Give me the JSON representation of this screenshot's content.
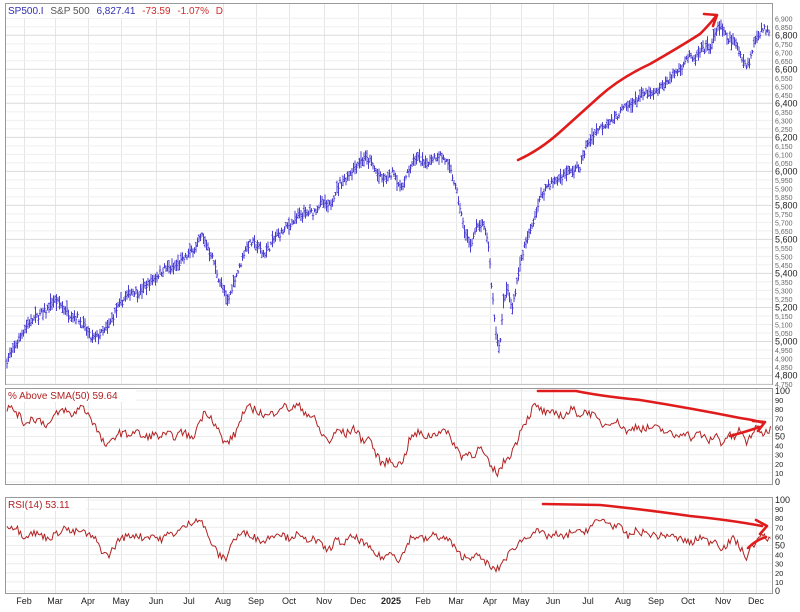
{
  "header": {
    "symbol": "SP500.I",
    "name": "S&P 500",
    "last": "6,827.41",
    "change": "-73.59",
    "pct": "-1.07%",
    "period": "D"
  },
  "panels": {
    "breadth_label": "% Above SMA(50) 59.64",
    "rsi_label": "RSI(14) 53.11"
  },
  "colors": {
    "price": "#4b3fd1",
    "indicator": "#b22222",
    "annotation": "#e01b1b",
    "grid": "#e6e6e6",
    "header_blue": "#2f2fb0",
    "header_red": "#d12b2b"
  },
  "chart_data": [
    {
      "type": "ohlc",
      "series": [
        {
          "name": "SP500.I"
        }
      ],
      "ylim": [
        4750,
        6925
      ],
      "y_ticks": [
        "6,900",
        "6,850",
        "6,800",
        "6,750",
        "6,700",
        "6,650",
        "6,600",
        "6,550",
        "6,500",
        "6,450",
        "6,400",
        "6,350",
        "6,300",
        "6,250",
        "6,200",
        "6,150",
        "6,100",
        "6,050",
        "6,000",
        "5,950",
        "5,900",
        "5,850",
        "5,800",
        "5,750",
        "5,700",
        "5,650",
        "5,600",
        "5,550",
        "5,500",
        "5,450",
        "5,400",
        "5,350",
        "5,300",
        "5,250",
        "5,200",
        "5,150",
        "5,100",
        "5,050",
        "5,000",
        "4,950",
        "4,900",
        "4,850",
        "4,800",
        "4,750"
      ],
      "x_ticks": [
        "Feb",
        "Mar",
        "Apr",
        "May",
        "Jun",
        "Jul",
        "Aug",
        "Sep",
        "Oct",
        "Nov",
        "Dec",
        "2025",
        "Feb",
        "Mar",
        "Apr",
        "May",
        "Jun",
        "Jul",
        "Aug",
        "Sep",
        "Oct",
        "Nov",
        "Dec"
      ],
      "anchors": [
        [
          0,
          4780
        ],
        [
          6,
          4880
        ],
        [
          14,
          4960
        ],
        [
          22,
          5050
        ],
        [
          30,
          5120
        ],
        [
          38,
          5150
        ],
        [
          46,
          5180
        ],
        [
          54,
          5240
        ],
        [
          62,
          5210
        ],
        [
          70,
          5160
        ],
        [
          78,
          5140
        ],
        [
          86,
          5070
        ],
        [
          92,
          5010
        ],
        [
          100,
          5040
        ],
        [
          108,
          5080
        ],
        [
          116,
          5180
        ],
        [
          124,
          5250
        ],
        [
          132,
          5300
        ],
        [
          140,
          5290
        ],
        [
          148,
          5340
        ],
        [
          156,
          5380
        ],
        [
          164,
          5430
        ],
        [
          172,
          5430
        ],
        [
          180,
          5460
        ],
        [
          188,
          5510
        ],
        [
          196,
          5560
        ],
        [
          202,
          5620
        ],
        [
          206,
          5580
        ],
        [
          212,
          5500
        ],
        [
          218,
          5380
        ],
        [
          224,
          5290
        ],
        [
          228,
          5230
        ],
        [
          234,
          5360
        ],
        [
          240,
          5440
        ],
        [
          246,
          5560
        ],
        [
          252,
          5580
        ],
        [
          258,
          5560
        ],
        [
          264,
          5510
        ],
        [
          270,
          5560
        ],
        [
          276,
          5620
        ],
        [
          282,
          5640
        ],
        [
          290,
          5690
        ],
        [
          298,
          5730
        ],
        [
          306,
          5750
        ],
        [
          314,
          5760
        ],
        [
          322,
          5820
        ],
        [
          328,
          5780
        ],
        [
          334,
          5860
        ],
        [
          340,
          5930
        ],
        [
          346,
          5960
        ],
        [
          352,
          6010
        ],
        [
          358,
          6050
        ],
        [
          364,
          6080
        ],
        [
          370,
          6060
        ],
        [
          376,
          6000
        ],
        [
          382,
          5950
        ],
        [
          388,
          5960
        ],
        [
          394,
          6000
        ],
        [
          400,
          5900
        ],
        [
          406,
          5960
        ],
        [
          412,
          6050
        ],
        [
          418,
          6080
        ],
        [
          424,
          6040
        ],
        [
          432,
          6080
        ],
        [
          440,
          6100
        ],
        [
          446,
          6060
        ],
        [
          452,
          5980
        ],
        [
          458,
          5850
        ],
        [
          464,
          5660
        ],
        [
          470,
          5560
        ],
        [
          476,
          5660
        ],
        [
          482,
          5690
        ],
        [
          488,
          5600
        ],
        [
          492,
          5300
        ],
        [
          496,
          5050
        ],
        [
          500,
          4970
        ],
        [
          504,
          5260
        ],
        [
          508,
          5300
        ],
        [
          512,
          5180
        ],
        [
          518,
          5390
        ],
        [
          524,
          5550
        ],
        [
          530,
          5640
        ],
        [
          536,
          5760
        ],
        [
          542,
          5870
        ],
        [
          548,
          5920
        ],
        [
          554,
          5940
        ],
        [
          560,
          5960
        ],
        [
          566,
          5990
        ],
        [
          572,
          6000
        ],
        [
          580,
          6030
        ],
        [
          586,
          6140
        ],
        [
          592,
          6210
        ],
        [
          598,
          6250
        ],
        [
          606,
          6280
        ],
        [
          614,
          6310
        ],
        [
          622,
          6360
        ],
        [
          630,
          6390
        ],
        [
          638,
          6430
        ],
        [
          646,
          6460
        ],
        [
          654,
          6450
        ],
        [
          662,
          6500
        ],
        [
          670,
          6550
        ],
        [
          676,
          6580
        ],
        [
          682,
          6620
        ],
        [
          688,
          6680
        ],
        [
          694,
          6650
        ],
        [
          700,
          6700
        ],
        [
          706,
          6720
        ],
        [
          712,
          6750
        ],
        [
          718,
          6860
        ],
        [
          722,
          6830
        ],
        [
          728,
          6770
        ],
        [
          734,
          6770
        ],
        [
          740,
          6700
        ],
        [
          746,
          6620
        ],
        [
          750,
          6650
        ],
        [
          756,
          6790
        ],
        [
          762,
          6830
        ],
        [
          768,
          6840
        ],
        [
          771,
          6825
        ]
      ],
      "annotation": "rising trend arrow from Apr 2025 low region to late Oct 2025 high"
    },
    {
      "type": "line",
      "series": [
        {
          "name": "% Above SMA(50)"
        }
      ],
      "ylim": [
        0,
        100
      ],
      "y_ticks": [
        "100",
        "90",
        "80",
        "70",
        "60",
        "50",
        "40",
        "30",
        "20",
        "10",
        "0"
      ],
      "anchors": [
        [
          0,
          78
        ],
        [
          8,
          82
        ],
        [
          16,
          78
        ],
        [
          24,
          64
        ],
        [
          32,
          70
        ],
        [
          40,
          68
        ],
        [
          48,
          62
        ],
        [
          56,
          74
        ],
        [
          64,
          80
        ],
        [
          72,
          72
        ],
        [
          80,
          84
        ],
        [
          88,
          76
        ],
        [
          96,
          60
        ],
        [
          102,
          45
        ],
        [
          108,
          38
        ],
        [
          114,
          50
        ],
        [
          120,
          54
        ],
        [
          128,
          52
        ],
        [
          136,
          56
        ],
        [
          144,
          48
        ],
        [
          152,
          52
        ],
        [
          160,
          50
        ],
        [
          168,
          52
        ],
        [
          176,
          50
        ],
        [
          184,
          56
        ],
        [
          192,
          46
        ],
        [
          200,
          68
        ],
        [
          206,
          78
        ],
        [
          212,
          70
        ],
        [
          218,
          58
        ],
        [
          224,
          42
        ],
        [
          230,
          46
        ],
        [
          236,
          54
        ],
        [
          242,
          74
        ],
        [
          250,
          82
        ],
        [
          258,
          78
        ],
        [
          266,
          72
        ],
        [
          274,
          76
        ],
        [
          282,
          84
        ],
        [
          290,
          80
        ],
        [
          298,
          84
        ],
        [
          306,
          76
        ],
        [
          314,
          70
        ],
        [
          322,
          52
        ],
        [
          330,
          44
        ],
        [
          338,
          58
        ],
        [
          346,
          52
        ],
        [
          354,
          60
        ],
        [
          362,
          46
        ],
        [
          370,
          48
        ],
        [
          376,
          30
        ],
        [
          382,
          20
        ],
        [
          390,
          24
        ],
        [
          398,
          18
        ],
        [
          404,
          26
        ],
        [
          410,
          48
        ],
        [
          418,
          54
        ],
        [
          426,
          50
        ],
        [
          434,
          52
        ],
        [
          442,
          58
        ],
        [
          450,
          50
        ],
        [
          456,
          38
        ],
        [
          462,
          28
        ],
        [
          468,
          32
        ],
        [
          474,
          30
        ],
        [
          480,
          38
        ],
        [
          486,
          26
        ],
        [
          492,
          14
        ],
        [
          498,
          10
        ],
        [
          504,
          22
        ],
        [
          510,
          30
        ],
        [
          516,
          42
        ],
        [
          522,
          62
        ],
        [
          528,
          70
        ],
        [
          534,
          84
        ],
        [
          540,
          80
        ],
        [
          548,
          74
        ],
        [
          556,
          76
        ],
        [
          564,
          72
        ],
        [
          572,
          80
        ],
        [
          580,
          74
        ],
        [
          588,
          78
        ],
        [
          596,
          70
        ],
        [
          604,
          62
        ],
        [
          612,
          68
        ],
        [
          620,
          64
        ],
        [
          628,
          54
        ],
        [
          636,
          62
        ],
        [
          644,
          58
        ],
        [
          652,
          60
        ],
        [
          660,
          58
        ],
        [
          668,
          54
        ],
        [
          676,
          50
        ],
        [
          684,
          56
        ],
        [
          692,
          48
        ],
        [
          700,
          54
        ],
        [
          708,
          44
        ],
        [
          716,
          52
        ],
        [
          722,
          42
        ],
        [
          728,
          52
        ],
        [
          734,
          48
        ],
        [
          740,
          58
        ],
        [
          746,
          42
        ],
        [
          752,
          54
        ],
        [
          758,
          60
        ],
        [
          764,
          52
        ],
        [
          771,
          60
        ]
      ],
      "annotation": "declining trend arrow from May 2025 to late Nov 2025"
    },
    {
      "type": "line",
      "series": [
        {
          "name": "RSI(14)"
        }
      ],
      "ylim": [
        0,
        100
      ],
      "y_ticks": [
        "100",
        "90",
        "80",
        "70",
        "60",
        "50",
        "40",
        "30",
        "20",
        "10",
        "0"
      ],
      "anchors": [
        [
          0,
          66
        ],
        [
          8,
          72
        ],
        [
          16,
          70
        ],
        [
          24,
          60
        ],
        [
          32,
          64
        ],
        [
          40,
          62
        ],
        [
          48,
          58
        ],
        [
          56,
          62
        ],
        [
          64,
          70
        ],
        [
          72,
          64
        ],
        [
          80,
          66
        ],
        [
          88,
          62
        ],
        [
          96,
          56
        ],
        [
          102,
          44
        ],
        [
          108,
          38
        ],
        [
          114,
          48
        ],
        [
          120,
          58
        ],
        [
          128,
          60
        ],
        [
          136,
          62
        ],
        [
          144,
          58
        ],
        [
          152,
          62
        ],
        [
          160,
          56
        ],
        [
          168,
          62
        ],
        [
          176,
          64
        ],
        [
          184,
          70
        ],
        [
          192,
          76
        ],
        [
          198,
          80
        ],
        [
          202,
          76
        ],
        [
          208,
          60
        ],
        [
          214,
          48
        ],
        [
          220,
          38
        ],
        [
          226,
          36
        ],
        [
          232,
          54
        ],
        [
          240,
          62
        ],
        [
          248,
          64
        ],
        [
          256,
          58
        ],
        [
          264,
          54
        ],
        [
          272,
          62
        ],
        [
          280,
          64
        ],
        [
          288,
          58
        ],
        [
          296,
          62
        ],
        [
          304,
          56
        ],
        [
          312,
          58
        ],
        [
          320,
          52
        ],
        [
          328,
          44
        ],
        [
          336,
          56
        ],
        [
          344,
          52
        ],
        [
          352,
          60
        ],
        [
          360,
          56
        ],
        [
          368,
          48
        ],
        [
          376,
          40
        ],
        [
          384,
          36
        ],
        [
          392,
          44
        ],
        [
          398,
          34
        ],
        [
          404,
          42
        ],
        [
          410,
          58
        ],
        [
          418,
          60
        ],
        [
          426,
          56
        ],
        [
          434,
          62
        ],
        [
          442,
          58
        ],
        [
          450,
          56
        ],
        [
          456,
          44
        ],
        [
          462,
          38
        ],
        [
          468,
          36
        ],
        [
          474,
          40
        ],
        [
          480,
          36
        ],
        [
          486,
          32
        ],
        [
          492,
          24
        ],
        [
          498,
          24
        ],
        [
          504,
          34
        ],
        [
          510,
          42
        ],
        [
          516,
          50
        ],
        [
          522,
          56
        ],
        [
          528,
          60
        ],
        [
          534,
          66
        ],
        [
          540,
          64
        ],
        [
          548,
          60
        ],
        [
          556,
          62
        ],
        [
          564,
          58
        ],
        [
          572,
          66
        ],
        [
          580,
          64
        ],
        [
          588,
          68
        ],
        [
          596,
          76
        ],
        [
          604,
          78
        ],
        [
          612,
          72
        ],
        [
          620,
          70
        ],
        [
          628,
          60
        ],
        [
          636,
          66
        ],
        [
          644,
          64
        ],
        [
          652,
          62
        ],
        [
          660,
          60
        ],
        [
          668,
          62
        ],
        [
          676,
          58
        ],
        [
          684,
          56
        ],
        [
          692,
          52
        ],
        [
          700,
          60
        ],
        [
          708,
          54
        ],
        [
          716,
          56
        ],
        [
          722,
          46
        ],
        [
          728,
          52
        ],
        [
          734,
          58
        ],
        [
          740,
          48
        ],
        [
          746,
          36
        ],
        [
          752,
          50
        ],
        [
          758,
          56
        ],
        [
          764,
          62
        ],
        [
          771,
          54
        ]
      ],
      "annotation": "declining trend arrow from May 2025 to late Nov 2025"
    }
  ]
}
